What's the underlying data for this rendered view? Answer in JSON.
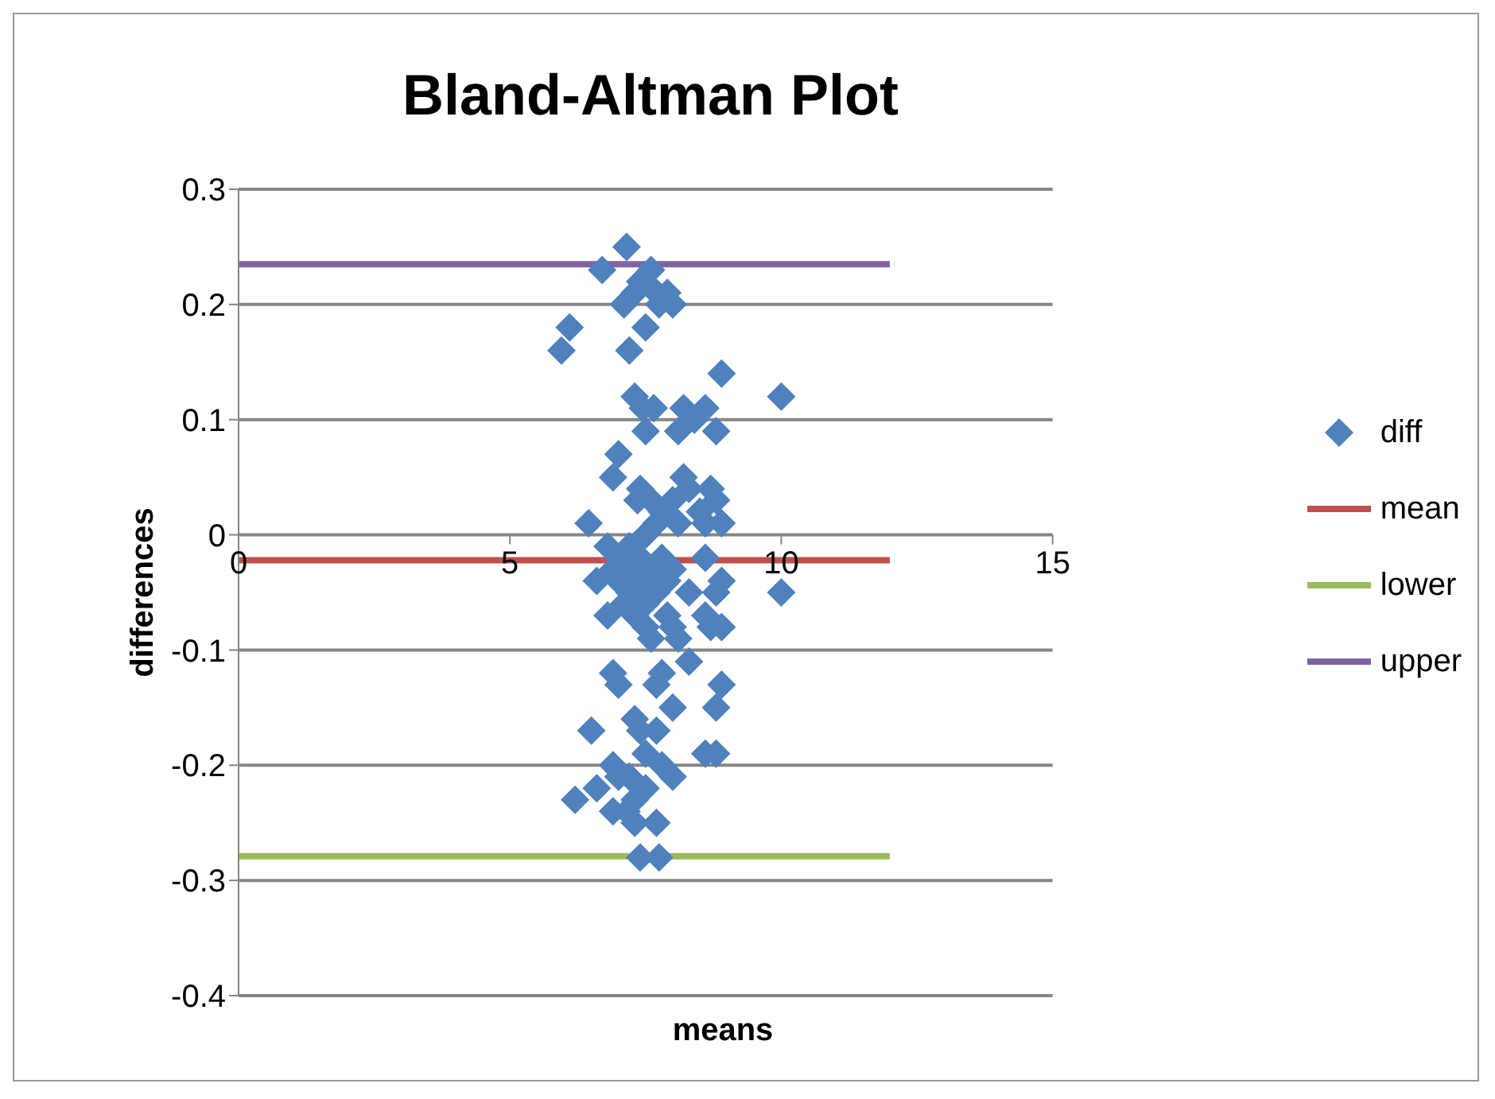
{
  "chart_data": {
    "type": "scatter",
    "title": "Bland-Altman Plot",
    "xlabel": "means",
    "ylabel": "differences",
    "xlim": [
      0,
      15
    ],
    "xticks": [
      0,
      5,
      10,
      15
    ],
    "ylim": [
      -0.4,
      0.3
    ],
    "yticks": [
      -0.4,
      -0.3,
      -0.2,
      -0.1,
      0,
      0.1,
      0.2,
      0.3
    ],
    "grid": "y",
    "legend": "right",
    "series": [
      {
        "name": "diff",
        "marker": "diamond",
        "color": "#4f81bd",
        "x": [
          7.15,
          6.7,
          7.6,
          7.4,
          7.7,
          7.1,
          7.3,
          7.9,
          8.0,
          7.75,
          7.5,
          6.1,
          5.95,
          7.2,
          7.3,
          7.45,
          7.65,
          8.2,
          8.6,
          8.9,
          10.0,
          8.4,
          8.1,
          8.8,
          7.5,
          7.0,
          6.9,
          7.4,
          7.6,
          7.35,
          8.2,
          8.3,
          8.7,
          8.8,
          8.0,
          7.8,
          8.5,
          8.9,
          8.6,
          8.1,
          7.7,
          7.5,
          6.45,
          6.8,
          7.2,
          7.0,
          7.4,
          7.8,
          8.6,
          6.9,
          7.3,
          7.6,
          8.0,
          6.6,
          7.0,
          7.5,
          7.9,
          8.9,
          7.2,
          7.7,
          8.3,
          8.8,
          10.0,
          7.1,
          7.5,
          7.3,
          6.8,
          7.9,
          8.6,
          8.7,
          8.9,
          7.5,
          8.0,
          7.6,
          8.1,
          8.3,
          6.9,
          7.0,
          7.8,
          7.7,
          8.9,
          8.8,
          8.0,
          7.3,
          7.4,
          7.7,
          6.5,
          7.5,
          8.6,
          8.8,
          6.9,
          7.8,
          7.2,
          7.0,
          8.0,
          6.6,
          7.5,
          6.2,
          7.3,
          6.9,
          7.15,
          7.3,
          7.7,
          7.4,
          7.75
        ],
        "values": [
          0.25,
          0.23,
          0.23,
          0.22,
          0.21,
          0.2,
          0.21,
          0.21,
          0.2,
          0.2,
          0.18,
          0.18,
          0.16,
          0.16,
          0.12,
          0.11,
          0.11,
          0.11,
          0.11,
          0.14,
          0.12,
          0.1,
          0.09,
          0.09,
          0.09,
          0.07,
          0.05,
          0.04,
          0.03,
          0.03,
          0.05,
          0.04,
          0.04,
          0.03,
          0.03,
          0.02,
          0.02,
          0.01,
          0.01,
          0.01,
          0.01,
          0,
          0.01,
          -0.01,
          -0.01,
          -0.02,
          -0.02,
          -0.02,
          -0.02,
          -0.03,
          -0.03,
          -0.03,
          -0.03,
          -0.04,
          -0.04,
          -0.04,
          -0.04,
          -0.04,
          -0.05,
          -0.05,
          -0.05,
          -0.05,
          -0.05,
          -0.06,
          -0.06,
          -0.07,
          -0.07,
          -0.07,
          -0.07,
          -0.08,
          -0.08,
          -0.08,
          -0.08,
          -0.09,
          -0.09,
          -0.11,
          -0.12,
          -0.13,
          -0.12,
          -0.13,
          -0.13,
          -0.15,
          -0.15,
          -0.16,
          -0.17,
          -0.17,
          -0.17,
          -0.19,
          -0.19,
          -0.19,
          -0.2,
          -0.2,
          -0.21,
          -0.21,
          -0.21,
          -0.22,
          -0.22,
          -0.23,
          -0.23,
          -0.24,
          -0.24,
          -0.25,
          -0.25,
          -0.28,
          -0.28
        ]
      },
      {
        "name": "mean",
        "type": "line",
        "marker": "none",
        "color": "#c0504d",
        "x": [
          0,
          12
        ],
        "values": [
          -0.022,
          -0.022
        ]
      },
      {
        "name": "lower",
        "type": "line",
        "marker": "none",
        "color": "#9bbb59",
        "x": [
          0,
          12
        ],
        "values": [
          -0.279,
          -0.279
        ]
      },
      {
        "name": "upper",
        "type": "line",
        "marker": "none",
        "color": "#8064a2",
        "x": [
          0,
          12
        ],
        "values": [
          0.235,
          0.235
        ]
      }
    ]
  }
}
